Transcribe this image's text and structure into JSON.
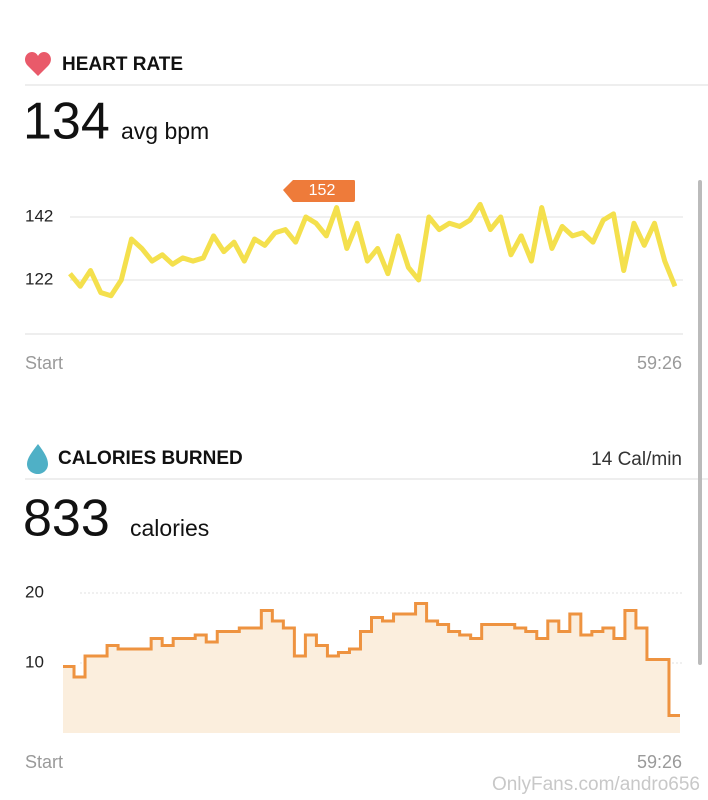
{
  "chart_data": [
    {
      "type": "line",
      "title": "HEART RATE",
      "summary_value": "134",
      "summary_unit": "avg bpm",
      "x_start_label": "Start",
      "x_end_label": "59:26",
      "annotation": "152",
      "ylim": [
        105,
        157
      ],
      "yticks": [
        122,
        142
      ],
      "grid": true,
      "series": [
        {
          "color": "#f4e04d",
          "values": [
            124,
            120,
            125,
            118,
            117,
            122,
            135,
            132,
            128,
            130,
            127,
            129,
            128,
            129,
            136,
            131,
            134,
            128,
            135,
            133,
            137,
            138,
            134,
            142,
            140,
            136,
            145,
            132,
            140,
            128,
            132,
            124,
            136,
            126,
            122,
            142,
            138,
            140,
            139,
            141,
            146,
            138,
            142,
            130,
            136,
            128,
            145,
            132,
            139,
            136,
            137,
            134,
            141,
            143,
            125,
            140,
            133,
            140,
            128,
            120
          ]
        }
      ]
    },
    {
      "type": "step",
      "title": "CALORIES BURNED",
      "rate": "14 Cal/min",
      "summary_value": "833",
      "summary_unit": "calories",
      "x_start_label": "Start",
      "x_end_label": "59:26",
      "ylim": [
        0,
        21
      ],
      "yticks": [
        10,
        20
      ],
      "grid": true,
      "series": [
        {
          "color": "#ee9340",
          "fill": "#fbeedd",
          "values": [
            9.5,
            8,
            11,
            11,
            12.5,
            12,
            12,
            12,
            13.5,
            12.5,
            13.5,
            13.5,
            14,
            13,
            14.5,
            14.5,
            15,
            15,
            17.5,
            16,
            15,
            11,
            14,
            12.5,
            11,
            11.5,
            12,
            14.5,
            16.5,
            16,
            17,
            17,
            18.5,
            16,
            15.5,
            14.5,
            14,
            13.5,
            15.5,
            15.5,
            15.5,
            15,
            14.5,
            13.5,
            16,
            14.5,
            17,
            14,
            14.5,
            15,
            13.5,
            17.5,
            15,
            10.5,
            10.5,
            2.5
          ]
        }
      ]
    }
  ],
  "watermark": "OnlyFans.com/andro656"
}
